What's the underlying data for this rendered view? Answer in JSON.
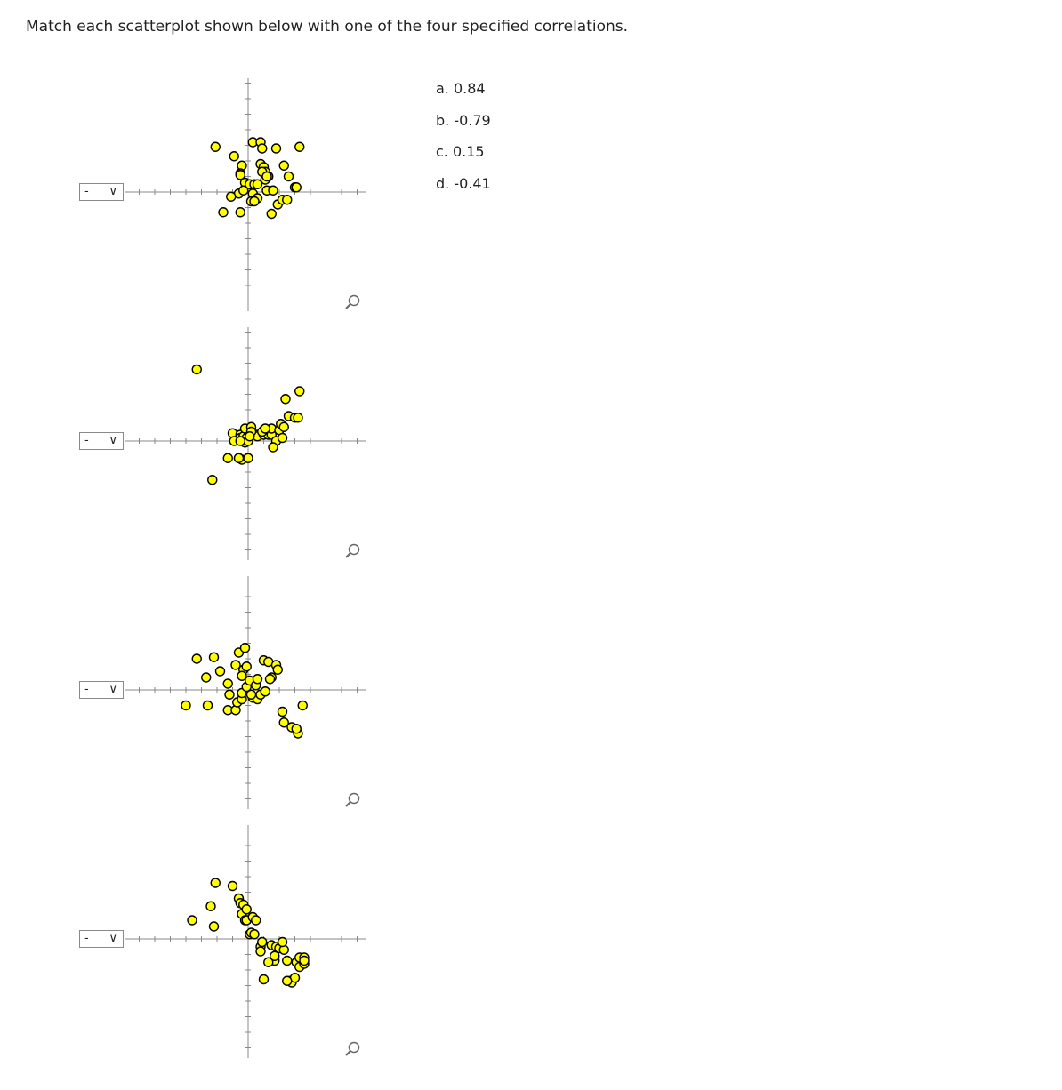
{
  "prompt": "Match each scatterplot shown below with one of the four specified correlations.",
  "dropdowns": [
    {
      "value": "-",
      "icon": "chevron-down-icon"
    },
    {
      "value": "-",
      "icon": "chevron-down-icon"
    },
    {
      "value": "-",
      "icon": "chevron-down-icon"
    },
    {
      "value": "-",
      "icon": "chevron-down-icon"
    }
  ],
  "answer_choices": [
    "a. 0.84",
    "b. -0.79",
    "c. 0.15",
    "d. -0.41"
  ],
  "colors": {
    "marker_fill": "#ffff00",
    "marker_stroke": "#000000",
    "axis": "#888888"
  },
  "chart_data": [
    {
      "type": "scatter",
      "x": [
        -2.1,
        -0.9,
        -0.4,
        -0.5,
        -0.5,
        -0.2,
        0.1,
        0.3,
        0.3,
        0.8,
        0.9,
        0.8,
        1.0,
        1.1,
        1.3,
        1.8,
        2.3,
        2.6,
        3.0,
        3.1,
        3.3,
        -0.6,
        -1.1,
        -0.3,
        0.2,
        0.6,
        0.9,
        1.2,
        1.6,
        1.9,
        -0.5,
        0.4,
        1.5,
        2.2,
        2.5,
        0.1,
        0.4,
        0.6,
        1.1,
        1.2,
        -1.6
      ],
      "y": [
        2.9,
        2.3,
        1.7,
        1.2,
        1.1,
        0.6,
        0.3,
        -0.1,
        3.2,
        3.2,
        2.8,
        1.8,
        1.6,
        1.3,
        1.0,
        2.8,
        1.7,
        1.0,
        0.3,
        0.3,
        2.9,
        -0.1,
        -0.3,
        0.1,
        -0.6,
        -0.4,
        1.3,
        0.1,
        0.1,
        -0.8,
        -1.3,
        -0.6,
        -1.4,
        -0.5,
        -0.5,
        0.5,
        0.5,
        0.5,
        0.8,
        1.0,
        -1.3
      ]
    },
    {
      "type": "scatter",
      "x": [
        -3.3,
        -2.3,
        -1.3,
        -1.0,
        -0.6,
        -0.5,
        -0.5,
        -0.3,
        -0.2,
        -0.2,
        -0.1,
        0.0,
        0.2,
        0.3,
        0.5,
        0.6,
        1.0,
        1.0,
        1.3,
        1.5,
        1.5,
        1.8,
        2.0,
        2.1,
        2.3,
        2.4,
        2.6,
        3.0,
        3.3,
        3.2,
        -0.9,
        -0.4,
        0.0,
        0.2,
        0.9,
        1.1,
        -0.6,
        1.6,
        -0.5,
        0.1,
        2.2
      ],
      "y": [
        4.6,
        -2.5,
        -1.1,
        0.5,
        -1.1,
        0.4,
        0.2,
        0.3,
        -0.1,
        0.8,
        0.2,
        0.0,
        0.9,
        0.4,
        0.4,
        0.3,
        0.4,
        0.7,
        0.4,
        0.4,
        0.8,
        0.0,
        0.7,
        1.1,
        0.9,
        2.7,
        1.6,
        1.5,
        3.2,
        1.5,
        0.0,
        -1.2,
        -1.1,
        0.6,
        0.6,
        0.8,
        -1.1,
        -0.4,
        0.0,
        0.3,
        0.2
      ]
    },
    {
      "type": "scatter",
      "x": [
        -4.0,
        -2.6,
        -1.3,
        -0.8,
        -0.7,
        -0.4,
        -0.4,
        -0.3,
        -0.1,
        0.3,
        0.6,
        0.8,
        1.0,
        1.3,
        1.5,
        1.8,
        2.2,
        2.8,
        3.2,
        3.5,
        -3.3,
        -2.2,
        -1.8,
        -1.3,
        -0.6,
        -0.2,
        0.1,
        0.2,
        0.5,
        0.6,
        1.1,
        1.4,
        1.9,
        -2.7,
        -1.2,
        -0.1,
        -0.4,
        -0.8,
        2.3,
        3.1
      ],
      "y": [
        -1.0,
        -1.0,
        -1.3,
        -1.3,
        -0.8,
        -0.6,
        -0.2,
        1.3,
        0.2,
        -0.5,
        -0.6,
        -0.3,
        1.9,
        1.8,
        0.8,
        1.6,
        -1.4,
        -2.4,
        -2.8,
        -1.0,
        2.0,
        2.1,
        1.2,
        0.4,
        2.4,
        2.7,
        0.6,
        -0.3,
        0.3,
        0.7,
        -0.1,
        0.7,
        1.3,
        0.8,
        -0.3,
        1.5,
        0.9,
        1.6,
        -2.1,
        -2.5
      ],
      "note": ""
    },
    {
      "type": "scatter",
      "x": [
        -3.6,
        -2.4,
        -2.2,
        -0.4,
        -0.2,
        -0.1,
        0.1,
        0.2,
        0.4,
        0.8,
        0.8,
        1.0,
        1.5,
        1.7,
        1.8,
        2.0,
        2.3,
        2.5,
        2.7,
        2.8,
        3.0,
        3.1,
        3.3,
        3.6,
        -2.1,
        -1.0,
        -0.6,
        -0.5,
        -0.3,
        -0.1,
        0.3,
        0.5,
        0.9,
        1.3,
        1.7,
        2.2,
        2.5,
        3.3,
        3.6,
        3.6
      ],
      "y": [
        1.2,
        2.1,
        0.8,
        1.6,
        1.2,
        1.2,
        0.3,
        0.4,
        0.3,
        -0.5,
        -0.8,
        -2.6,
        -0.4,
        -1.4,
        -0.5,
        -0.6,
        -0.7,
        -1.4,
        -2.7,
        -2.8,
        -2.5,
        -1.5,
        -1.2,
        -1.2,
        3.6,
        3.4,
        2.6,
        2.3,
        2.2,
        1.9,
        1.4,
        1.2,
        -0.2,
        -1.5,
        -1.1,
        -0.2,
        -2.7,
        -1.8,
        -1.6,
        -1.4
      ],
      "note": ""
    }
  ]
}
